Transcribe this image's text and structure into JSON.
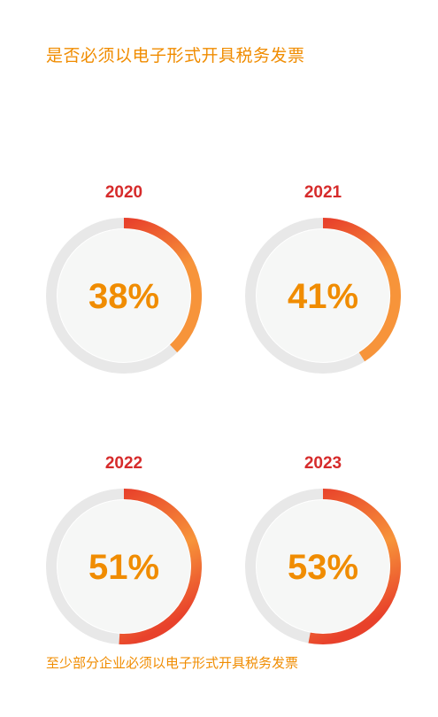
{
  "title": "是否必须以电子形式开具税务发票",
  "footnote": "至少部分企业必须以电子形式开具税务发票",
  "colors": {
    "title": "#f08c00",
    "year": "#d62b2b",
    "value": "#f08c00",
    "track": "#e8e8e8",
    "inner": "#f6f7f6",
    "arc_start": "#e8412b",
    "arc_end": "#f7943a"
  },
  "chart_data": {
    "type": "pie",
    "subtype": "donut-progress",
    "title": "是否必须以电子形式开具税务发票",
    "note": "至少部分企业必须以电子形式开具税务发票",
    "categories": [
      "2020",
      "2021",
      "2022",
      "2023"
    ],
    "values": [
      38,
      41,
      51,
      53
    ],
    "unit": "%",
    "labels": [
      "38%",
      "41%",
      "51%",
      "53%"
    ],
    "max": 100
  }
}
